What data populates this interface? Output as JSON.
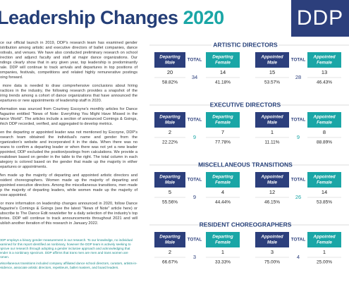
{
  "header": {
    "title": "Leadership Changes ",
    "year": "2020",
    "logo": "DDP"
  },
  "body": {
    "paragraphs": [
      "nce our official launch in 2019, DDP's research team has examined gender distribution among artistic and executive directors of ballet companies, dance festivals, and venues. We have also conducted preliminary research on school direction and adjunct faculty and staff at major dance organizations. Our findings clearly show that in any given year, top leadership is predominantly male. DDP will continue to track arrivals and departures in top positions of companies, festivals, competitions and related highly remunerative postings going forward.",
      "s more data is needed to draw comprehensive conclusions about hiring practices in the industry, the following research provides a snapshot of the hiring trends among a cohort of dance organizations that have announced the departures or new appointments of leadership staff in 2020.",
      "information was sourced from Courtney Escoyne's monthly articles for Dance Magazine entitled \"News of Note: Everything You Might Have Missed in the Dance World\". The articles include a section of announced Comings & Goings, which DDP recorded, verified, and aggregated to develop metrics.",
      "hen the departing or appointed leader was not mentioned by Escoyne, DDP's research team obtained the individual's name and gender from the organization's website and incorporated it in the data. When there was no means to confirm a departing leader or when there was not yet a new leader appointed, DDP excluded the position/postings from calculations. We provide a breakdown based on gender in the table to the right. The total column in each category is colored based on the gender that made up the majority in either departures or appointments.",
      "Men made up the majority of departing and appointed artistic directors and resident choreographers. Women made up the majority of departing and appointed executive directors. Among the miscellaneous transitions, men made up the majority of departing leaders, while women made up the majority of those appointed.",
      "For more information on leadership changes announced in 2020, follow Dance Magazine's Comings & Goings (see the latest \"News of Note\" article here) or subscribe to The Dance Edit newsletter for a daily selection of the industry's top stories. DDP will continue to track announcements throughout 2021 and will publish another iteration of this research in January 2022."
    ],
    "footnotes": [
      "*DDP employs a binary gender measurement in our research. To our knowledge, no individual examined for this report identified as nonbinary, however the DDP team is actively seeking to improve our research through adopting a gender inclusive approach and acknowledging that gender is a nonbinary spectrum. DDP affirms that trans men are men and trans women are women.",
      "*Miscellaneous transitions included company affiliated dance school directors, curators, artists-in-residence, associate artistic directors, repetiteurs, ballet masters, and board leaders."
    ]
  },
  "columns": {
    "departing_male": "Departing Male",
    "total": "TOTAL",
    "departing_female": "Departing Female",
    "appointed_male": "Appointed Male",
    "appointed_female": "Appointed Female"
  },
  "sections": [
    {
      "title": "ARTISTIC DIRECTORS",
      "departing_male": {
        "count": 20,
        "percent": "58.82%"
      },
      "departing_total": 34,
      "departing_female": {
        "count": 14,
        "percent": "41.18%"
      },
      "appointed_male": {
        "count": 15,
        "percent": "53.57%"
      },
      "appointed_total": 28,
      "appointed_female": {
        "count": 13,
        "percent": "46.43%"
      }
    },
    {
      "title": "EXECUTIVE DIRECTORS",
      "departing_male": {
        "count": 2,
        "percent": "22.22%"
      },
      "departing_total": 9,
      "departing_female": {
        "count": 7,
        "percent": "77.78%"
      },
      "appointed_male": {
        "count": 1,
        "percent": "11.11%"
      },
      "appointed_total": 9,
      "appointed_female": {
        "count": 8,
        "percent": "88.89%"
      }
    },
    {
      "title": "MISCELLANEOUS TRANSITIONS",
      "departing_male": {
        "count": 5,
        "percent": "55.56%"
      },
      "departing_total": 9,
      "departing_female": {
        "count": 4,
        "percent": "44.44%"
      },
      "appointed_male": {
        "count": 12,
        "percent": "46.15%"
      },
      "appointed_total": 26,
      "appointed_female": {
        "count": 14,
        "percent": "53.85%"
      }
    },
    {
      "title": "RESIDENT CHOREOGRAPHERS",
      "departing_male": {
        "count": 2,
        "percent": "66.67%"
      },
      "departing_total": 3,
      "departing_female": {
        "count": 1,
        "percent": "33.33%"
      },
      "appointed_male": {
        "count": 3,
        "percent": "75.00%"
      },
      "appointed_total": 4,
      "appointed_female": {
        "count": 1,
        "percent": "25.00%"
      }
    }
  ]
}
